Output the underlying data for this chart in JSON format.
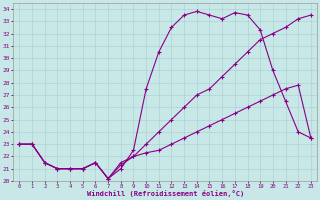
{
  "xlabel": "Windchill (Refroidissement éolien,°C)",
  "background_color": "#c8e8e8",
  "line_color": "#880088",
  "xlim": [
    -0.5,
    23.5
  ],
  "ylim": [
    20,
    34.5
  ],
  "xticks": [
    0,
    1,
    2,
    3,
    4,
    5,
    6,
    7,
    8,
    9,
    10,
    11,
    12,
    13,
    14,
    15,
    16,
    17,
    18,
    19,
    20,
    21,
    22,
    23
  ],
  "yticks": [
    20,
    21,
    22,
    23,
    24,
    25,
    26,
    27,
    28,
    29,
    30,
    31,
    32,
    33,
    34
  ],
  "line1_x": [
    0,
    1,
    2,
    3,
    4,
    5,
    6,
    7,
    8,
    9,
    10,
    11,
    12,
    13,
    14,
    15,
    16,
    17,
    18,
    19,
    20,
    21,
    22,
    23
  ],
  "line1_y": [
    23.0,
    23.0,
    21.5,
    21.0,
    21.0,
    21.0,
    21.5,
    20.2,
    21.0,
    22.5,
    27.5,
    30.5,
    32.5,
    33.5,
    33.8,
    33.5,
    33.2,
    33.7,
    33.5,
    32.3,
    29.0,
    26.5,
    24.0,
    23.5
  ],
  "line2_x": [
    0,
    1,
    2,
    3,
    4,
    5,
    6,
    7,
    8,
    9,
    10,
    11,
    12,
    13,
    14,
    15,
    16,
    17,
    18,
    19,
    20,
    21,
    22,
    23
  ],
  "line2_y": [
    23.0,
    23.0,
    21.5,
    21.0,
    21.0,
    21.0,
    21.5,
    20.2,
    21.3,
    22.0,
    23.0,
    24.0,
    25.0,
    26.0,
    27.0,
    27.5,
    28.5,
    29.5,
    30.5,
    31.5,
    32.0,
    32.5,
    33.2,
    33.5
  ],
  "line3_x": [
    0,
    1,
    2,
    3,
    4,
    5,
    6,
    7,
    8,
    9,
    10,
    11,
    12,
    13,
    14,
    15,
    16,
    17,
    18,
    19,
    20,
    21,
    22,
    23
  ],
  "line3_y": [
    23.0,
    23.0,
    21.5,
    21.0,
    21.0,
    21.0,
    21.5,
    20.2,
    21.5,
    22.0,
    22.3,
    22.5,
    23.0,
    23.5,
    24.0,
    24.5,
    25.0,
    25.5,
    26.0,
    26.5,
    27.0,
    27.5,
    27.8,
    23.5
  ]
}
